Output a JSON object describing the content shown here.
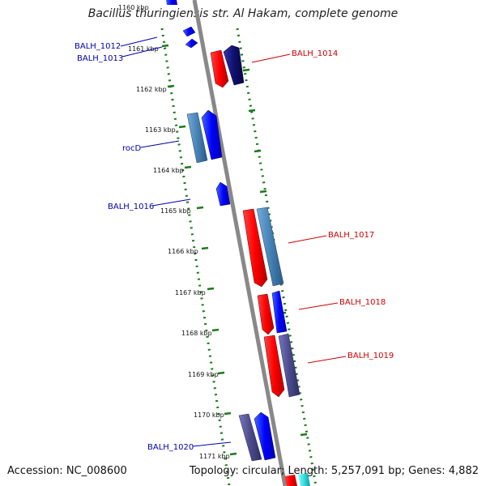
{
  "title": "Bacillus thuringiensis str. Al Hakam, complete genome",
  "footer": {
    "accession": "Accession: NC_008600",
    "summary": "Topology: circular; Length: 5,257,091 bp; Genes: 4,882"
  },
  "colors": {
    "forward_gene_label": "#cc0000",
    "reverse_gene_label": "#0000aa",
    "backbone": "#888888",
    "tick": "#1a7a1a"
  },
  "kbp_ticks": [
    "1160 kbp",
    "1161 kbp",
    "1162 kbp",
    "1163 kbp",
    "1164 kbp",
    "1165 kbp",
    "1166 kbp",
    "1167 kbp",
    "1168 kbp",
    "1169 kbp",
    "1170 kbp",
    "1171 kbp"
  ],
  "gene_labels_left": [
    "BALH_1012",
    "BALH_1013",
    "rocD",
    "BALH_1016",
    "BALH_1020"
  ],
  "gene_labels_right": [
    "BALH_1014",
    "BALH_1017",
    "BALH_1018",
    "BALH_1019"
  ]
}
